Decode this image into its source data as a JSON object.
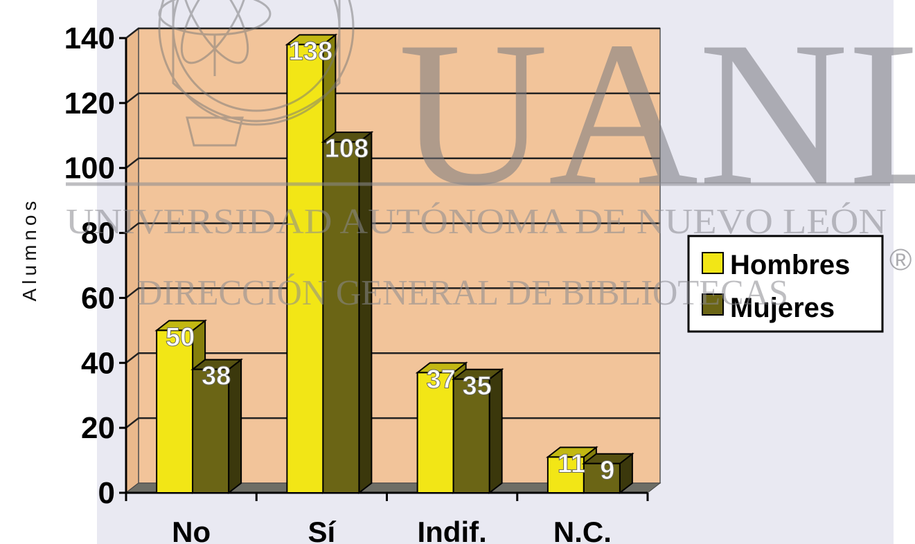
{
  "chart_data": {
    "type": "bar",
    "categories": [
      "No",
      "Sí",
      "Indif.",
      "N.C."
    ],
    "series": [
      {
        "name": "Hombres",
        "values": [
          50,
          138,
          37,
          11
        ],
        "color": "#f2e616"
      },
      {
        "name": "Mujeres",
        "values": [
          38,
          108,
          35,
          9
        ],
        "color": "#6b6515"
      }
    ],
    "data_labels": {
      "Hombres": [
        "50",
        "138",
        "37",
        "11"
      ],
      "Mujeres": [
        "38",
        "108",
        "35",
        "9"
      ]
    },
    "ylabel": "Alumnos",
    "ylim": [
      0,
      140
    ],
    "yticks": [
      0,
      20,
      40,
      60,
      80,
      100,
      120,
      140
    ],
    "grid": true,
    "legend": "right",
    "plot_background": "#f2c49a",
    "floor_color": "#6e6e66"
  },
  "watermark": {
    "big": "UANL",
    "line1": "UNIVERSIDAD AUTÓNOMA DE NUEVO LEÓN",
    "line2": "DIRECCIÓN GENERAL DE BIBLIOTECAS",
    "registered": "®"
  }
}
